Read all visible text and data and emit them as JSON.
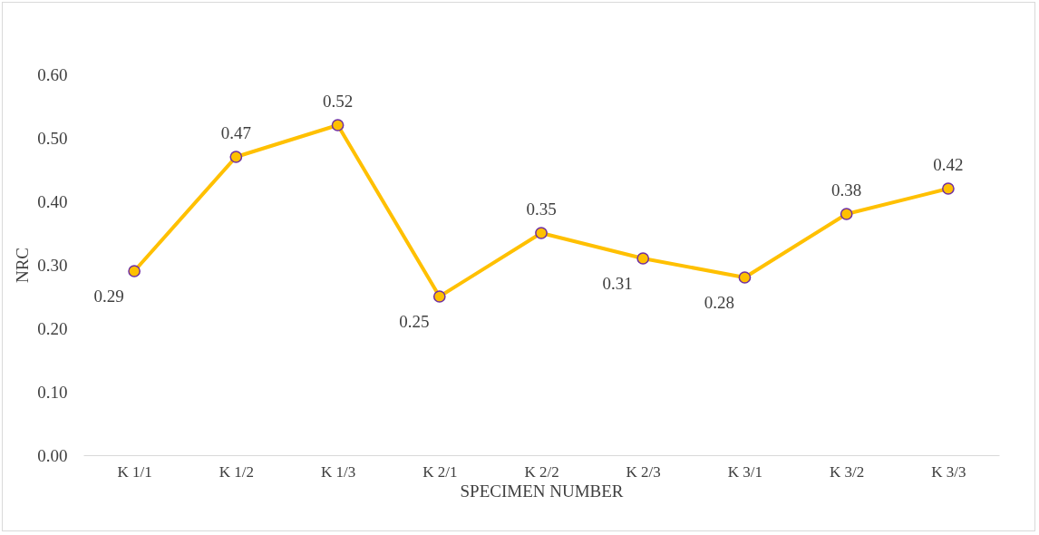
{
  "chart_data": {
    "type": "line",
    "xlabel": "SPECIMEN NUMBER",
    "ylabel": "NRC",
    "categories": [
      "K 1/1",
      "K 1/2",
      "K 1/3",
      "K 2/1",
      "K 2/2",
      "K 2/3",
      "K 3/1",
      "K 3/2",
      "K 3/3"
    ],
    "series": [
      {
        "color": "#ffc000",
        "values": [
          0.29,
          0.47,
          0.52,
          0.25,
          0.35,
          0.31,
          0.28,
          0.38,
          0.42
        ]
      }
    ],
    "ylim": [
      0,
      0.6
    ],
    "yticks": [
      {
        "value": 0,
        "label": "0.00"
      },
      {
        "value": 0.1,
        "label": "0.10"
      },
      {
        "value": 0.2,
        "label": "0.20"
      },
      {
        "value": 0.3,
        "label": "0.30"
      },
      {
        "value": 0.4,
        "label": "0.40"
      },
      {
        "value": 0.5,
        "label": "0.50"
      },
      {
        "value": 0.6,
        "label": "0.60"
      }
    ],
    "marker": "circle",
    "line_style": "solid",
    "grid": false,
    "data_labels": true
  }
}
